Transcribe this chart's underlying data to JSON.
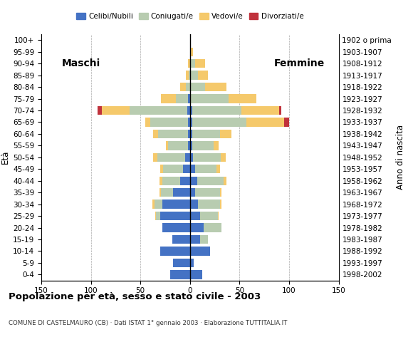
{
  "age_groups": [
    "0-4",
    "5-9",
    "10-14",
    "15-19",
    "20-24",
    "25-29",
    "30-34",
    "35-39",
    "40-44",
    "45-49",
    "50-54",
    "55-59",
    "60-64",
    "65-69",
    "70-74",
    "75-79",
    "80-84",
    "85-89",
    "90-94",
    "95-99",
    "100+"
  ],
  "birth_years": [
    "1998-2002",
    "1993-1997",
    "1988-1992",
    "1983-1987",
    "1978-1982",
    "1973-1977",
    "1968-1972",
    "1963-1967",
    "1958-1962",
    "1953-1957",
    "1948-1952",
    "1943-1947",
    "1938-1942",
    "1933-1937",
    "1928-1932",
    "1923-1927",
    "1918-1922",
    "1913-1917",
    "1908-1912",
    "1903-1907",
    "1902 o prima"
  ],
  "male_celibe": [
    20,
    17,
    30,
    18,
    28,
    30,
    28,
    17,
    10,
    7,
    5,
    2,
    2,
    2,
    3,
    2,
    0,
    0,
    0,
    0,
    0
  ],
  "male_coniugato": [
    0,
    0,
    0,
    0,
    0,
    4,
    8,
    12,
    18,
    20,
    28,
    20,
    30,
    38,
    58,
    12,
    4,
    1,
    0,
    0,
    0
  ],
  "male_vedovo": [
    0,
    0,
    0,
    0,
    0,
    1,
    2,
    2,
    3,
    3,
    4,
    2,
    5,
    5,
    28,
    15,
    6,
    3,
    2,
    0,
    0
  ],
  "male_divor": [
    0,
    0,
    0,
    0,
    0,
    0,
    0,
    0,
    0,
    0,
    0,
    0,
    0,
    0,
    4,
    0,
    0,
    0,
    0,
    0,
    0
  ],
  "female_nubile": [
    12,
    4,
    20,
    10,
    14,
    10,
    8,
    5,
    7,
    5,
    3,
    2,
    2,
    2,
    2,
    1,
    0,
    0,
    0,
    0,
    0
  ],
  "female_coniugata": [
    0,
    0,
    0,
    8,
    18,
    18,
    22,
    25,
    27,
    22,
    28,
    22,
    28,
    55,
    50,
    38,
    15,
    8,
    5,
    1,
    0
  ],
  "female_vedova": [
    0,
    0,
    0,
    0,
    0,
    1,
    2,
    2,
    3,
    3,
    5,
    5,
    12,
    38,
    38,
    28,
    22,
    10,
    10,
    2,
    0
  ],
  "female_divor": [
    0,
    0,
    0,
    0,
    0,
    0,
    0,
    0,
    0,
    0,
    0,
    0,
    0,
    5,
    2,
    0,
    0,
    0,
    0,
    0,
    0
  ],
  "colors": {
    "celibe_nubile": "#4472C4",
    "coniugato_a": "#B8CCB0",
    "vedovo_a": "#F5C96B",
    "divorziato_a": "#C0323C"
  },
  "title": "Popolazione per età, sesso e stato civile - 2003",
  "subtitle": "COMUNE DI CASTELMAURO (CB) · Dati ISTAT 1° gennaio 2003 · Elaborazione TUTTITALIA.IT",
  "label_maschi": "Maschi",
  "label_femmine": "Femmine",
  "ylabel_left": "Età",
  "ylabel_right": "Anno di nascita"
}
